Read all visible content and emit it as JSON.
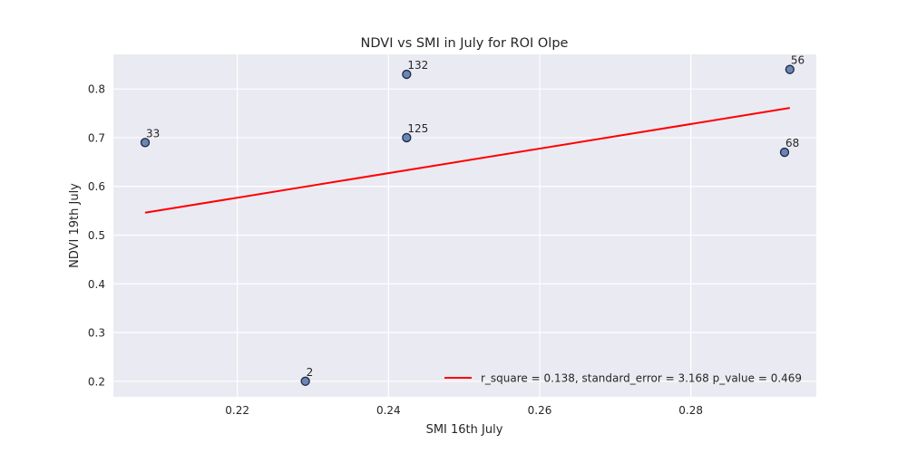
{
  "chart_data": {
    "type": "scatter",
    "title": "NDVI vs SMI in July for ROI Olpe",
    "xlabel": "SMI 16th July",
    "ylabel": "NDVI 19th July",
    "xlim": [
      0.2036,
      0.2966
    ],
    "ylim": [
      0.168,
      0.871
    ],
    "xticks": [
      0.22,
      0.24,
      0.26,
      0.28
    ],
    "xtick_labels": [
      "0.22",
      "0.24",
      "0.26",
      "0.28"
    ],
    "yticks": [
      0.2,
      0.3,
      0.4,
      0.5,
      0.6,
      0.7,
      0.8
    ],
    "ytick_labels": [
      "0.2",
      "0.3",
      "0.4",
      "0.5",
      "0.6",
      "0.7",
      "0.8"
    ],
    "grid": true,
    "legend_position": "lower-right",
    "points": [
      {
        "label": "33",
        "x": 0.2078,
        "y": 0.69
      },
      {
        "label": "2",
        "x": 0.229,
        "y": 0.2
      },
      {
        "label": "132",
        "x": 0.2424,
        "y": 0.83
      },
      {
        "label": "125",
        "x": 0.2424,
        "y": 0.7
      },
      {
        "label": "68",
        "x": 0.2924,
        "y": 0.67
      },
      {
        "label": "56",
        "x": 0.2931,
        "y": 0.84
      }
    ],
    "fit_line": {
      "x": [
        0.2078,
        0.2931
      ],
      "y": [
        0.546,
        0.761
      ],
      "legend": "r_square = 0.138, standard_error = 3.168 p_value = 0.469"
    },
    "colors": {
      "plot_background": "#eaeaf2",
      "grid": "#ffffff",
      "marker_fill": "#6d85b5",
      "marker_edge": "#1b2a44",
      "fit_line": "#ff0000"
    }
  }
}
